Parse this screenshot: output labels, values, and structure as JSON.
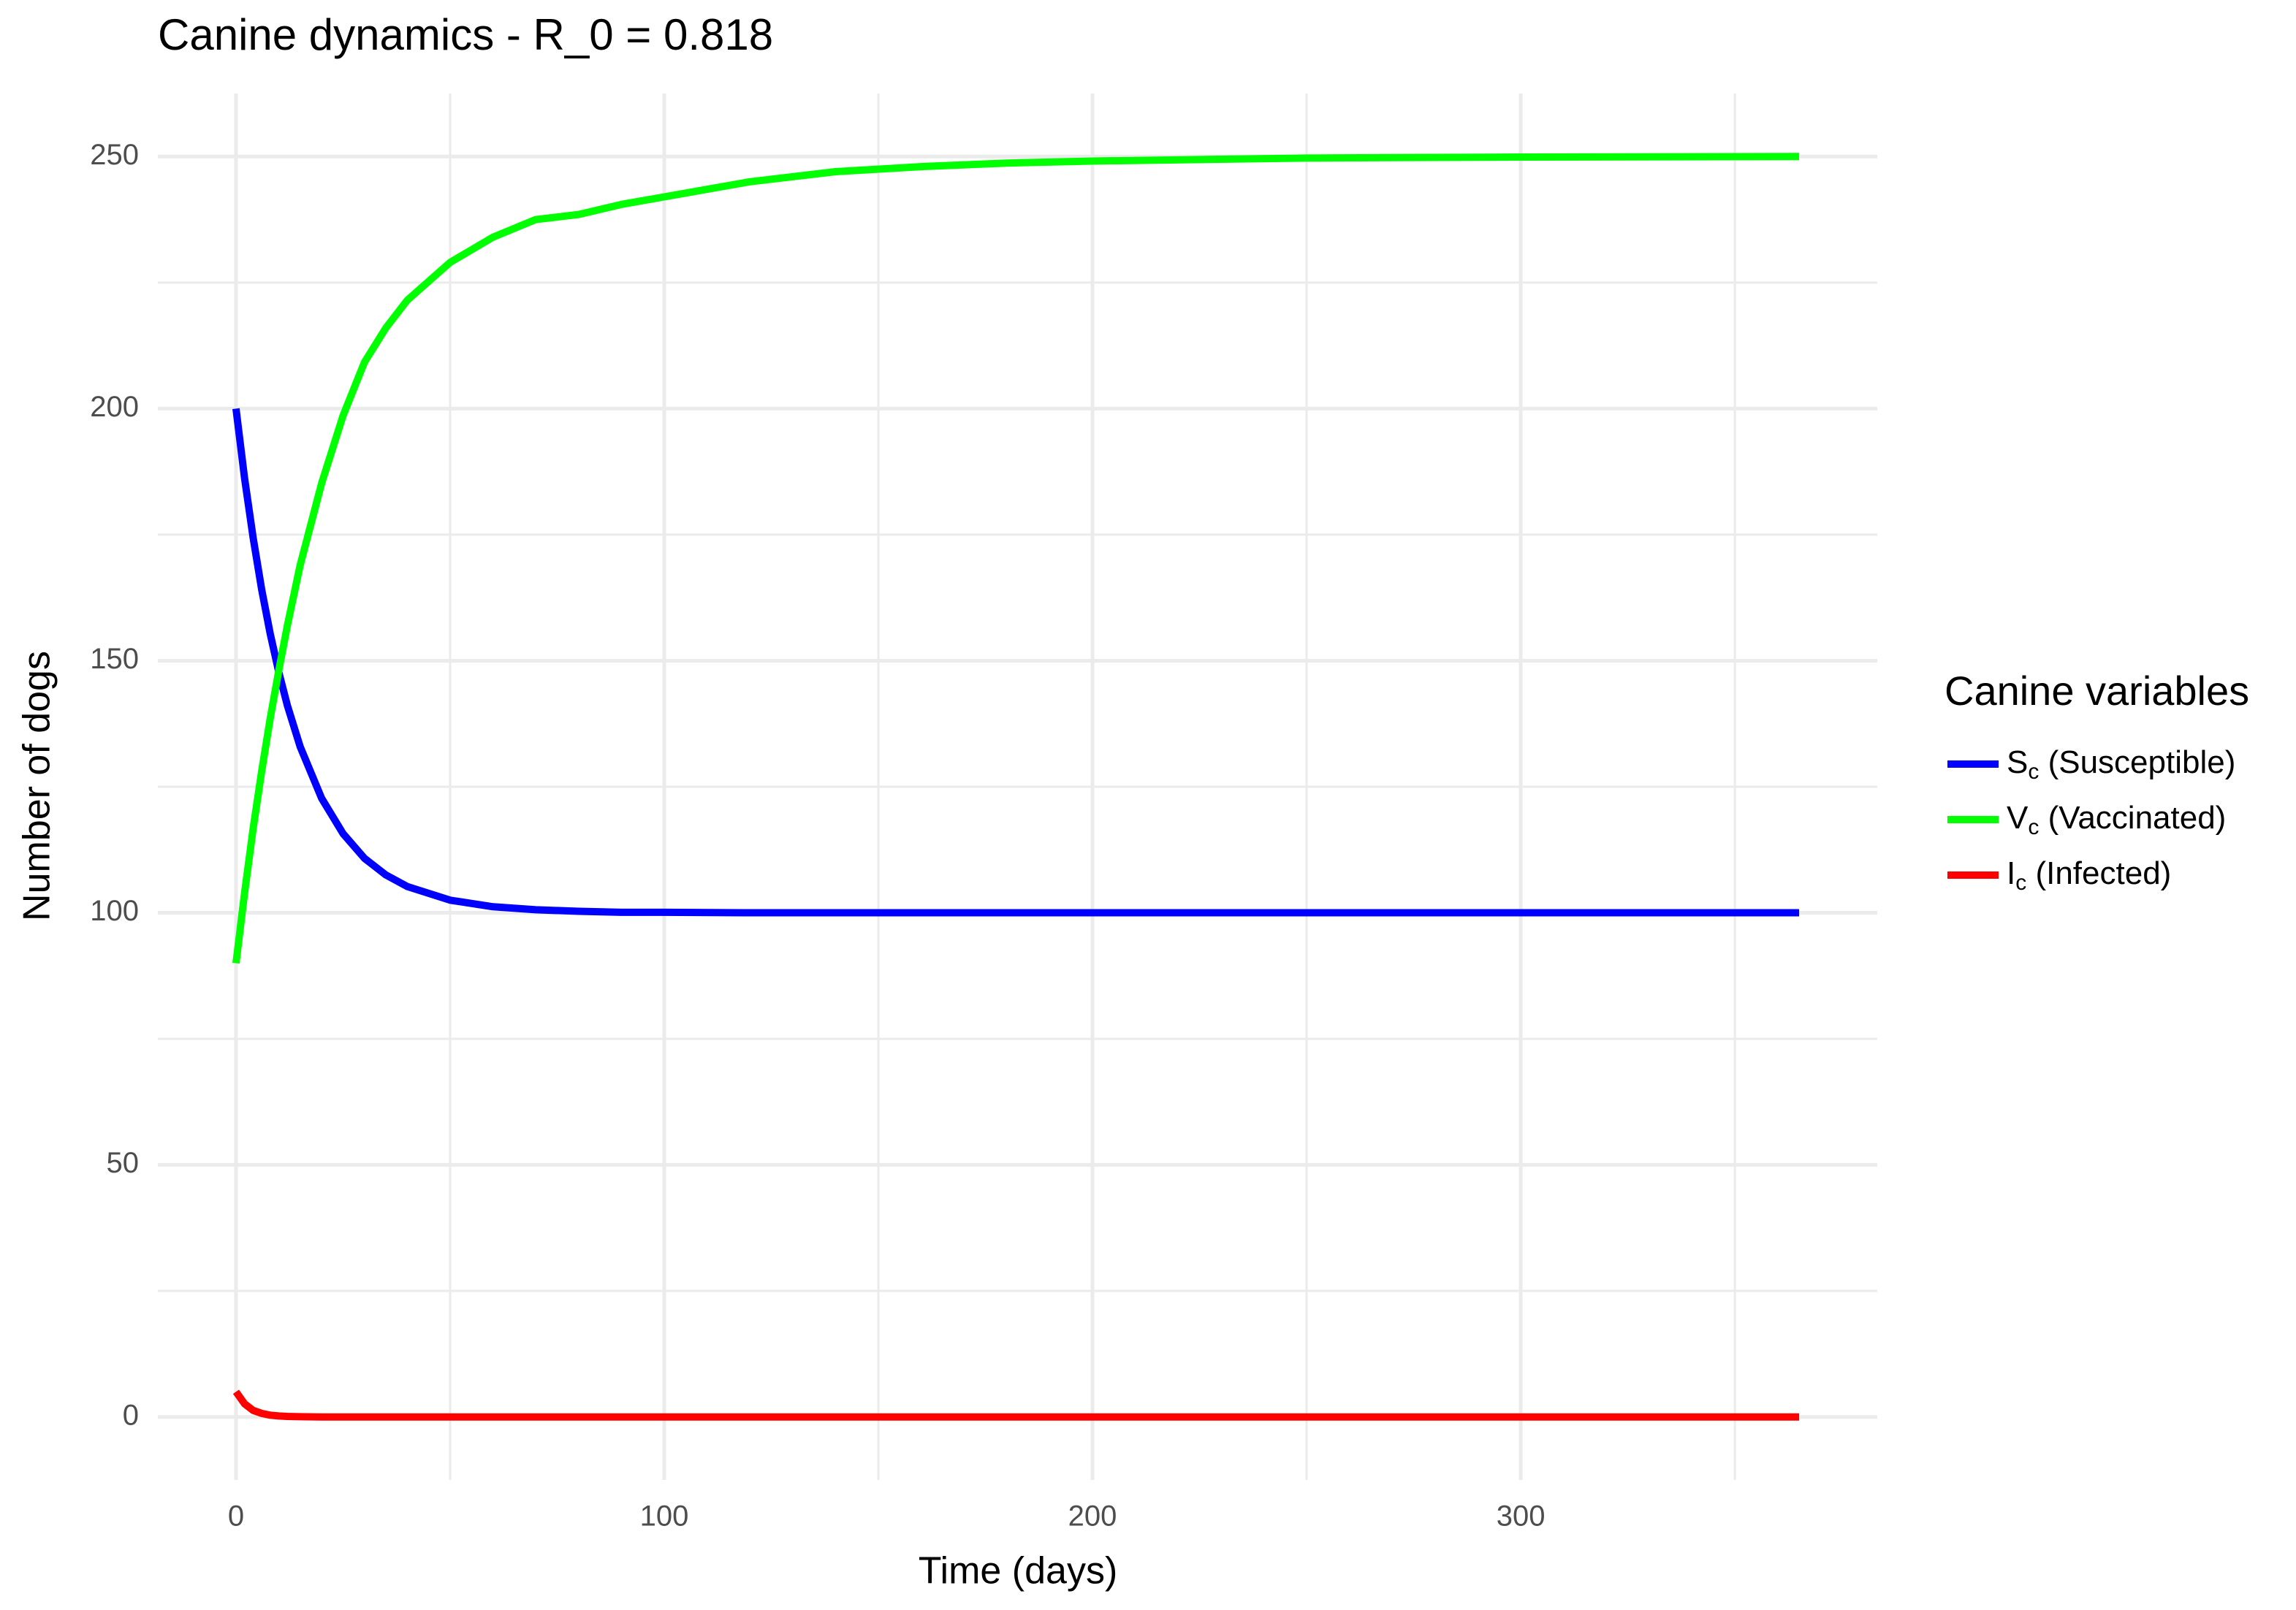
{
  "chart_data": {
    "type": "line",
    "title": "Canine dynamics - R_0 = 0.818",
    "x_label": "Time (days)",
    "y_label": "Number of dogs",
    "legend_title": "Canine variables",
    "legend_position": "right",
    "grid": true,
    "x": [
      0,
      2,
      4,
      6,
      8,
      10,
      12,
      15,
      20,
      25,
      30,
      35,
      40,
      50,
      60,
      70,
      80,
      90,
      100,
      120,
      140,
      160,
      180,
      200,
      250,
      300,
      365
    ],
    "series": [
      {
        "name": "Sc (Susceptible)",
        "color": "#0000ff",
        "values": [
          200,
          186.2,
          174.4,
          164.1,
          155.3,
          147.7,
          141.1,
          132.9,
          122.7,
          115.7,
          110.8,
          107.5,
          105.2,
          102.5,
          101.2,
          100.6,
          100.3,
          100.1,
          100.1,
          100,
          100,
          100,
          100,
          100,
          100,
          100,
          100
        ]
      },
      {
        "name": "Vc (Vaccinated)",
        "color": "#00ff00",
        "values": [
          90,
          103.9,
          116.7,
          128.1,
          138.6,
          148.1,
          157,
          169,
          185.2,
          198.6,
          209.2,
          216,
          221.5,
          229,
          234,
          237.5,
          238.5,
          240.5,
          242,
          245,
          247,
          248,
          248.7,
          249.1,
          249.7,
          249.9,
          250
        ]
      },
      {
        "name": "Ic (Infected)",
        "color": "#ff0000",
        "values": [
          5,
          2.6,
          1.3,
          0.7,
          0.35,
          0.2,
          0.1,
          0.05,
          0,
          0,
          0,
          0,
          0,
          0,
          0,
          0,
          0,
          0,
          0,
          0,
          0,
          0,
          0,
          0,
          0,
          0,
          0
        ]
      }
    ],
    "xlim": [
      -18.25,
      383.25
    ],
    "ylim": [
      -12.5,
      262.5
    ],
    "xticks": [
      0,
      100,
      200,
      300
    ],
    "yticks": [
      0,
      50,
      100,
      150,
      200,
      250
    ],
    "x_minor_ticks": [
      50,
      150,
      250,
      350
    ],
    "y_minor_ticks": [
      25,
      75,
      125,
      175,
      225
    ]
  }
}
